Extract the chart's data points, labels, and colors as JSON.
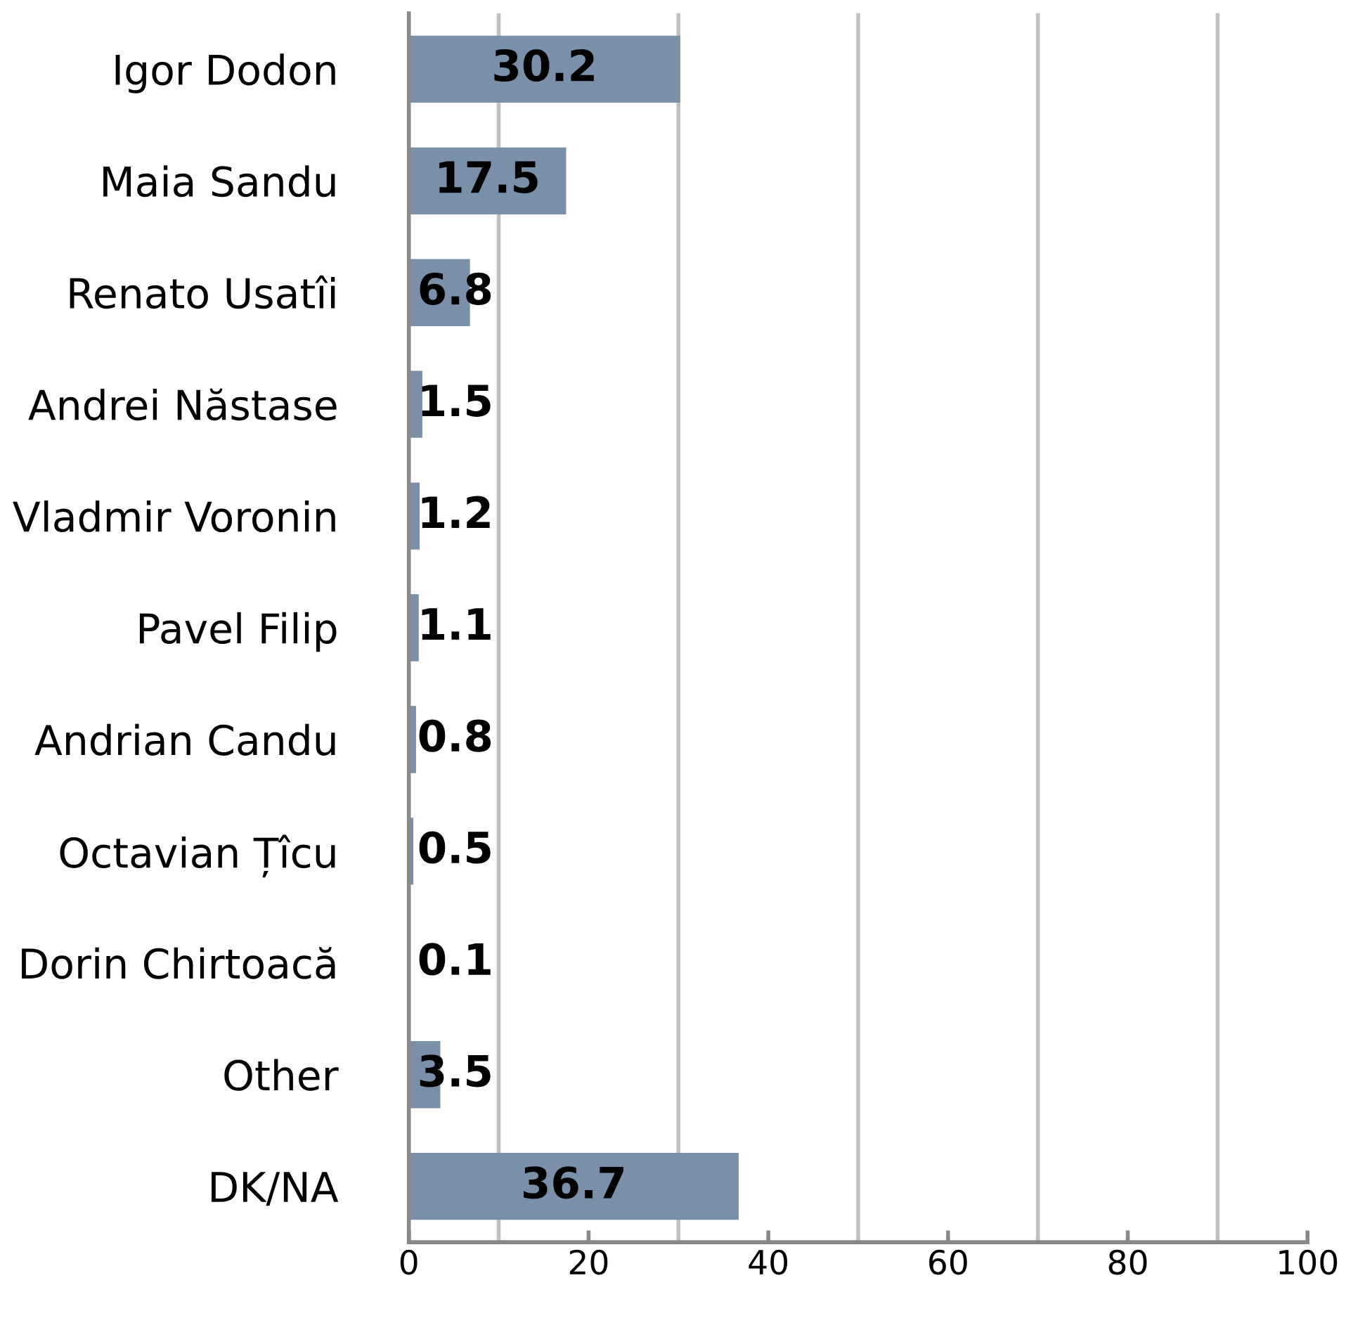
{
  "chart_data": {
    "type": "bar",
    "orientation": "horizontal",
    "categories": [
      "Igor Dodon",
      "Maia Sandu",
      "Renato Usatîi",
      "Andrei Năstase",
      "Vladmir Voronin",
      "Pavel Filip",
      "Andrian Candu",
      "Octavian Țîcu",
      "Dorin Chirtoacă",
      "Other",
      "DK/NA"
    ],
    "values": [
      30.2,
      17.5,
      6.8,
      1.5,
      1.2,
      1.1,
      0.8,
      0.5,
      0.1,
      3.5,
      36.7
    ],
    "color": "#7a90a8",
    "data_labels": true,
    "xlim": [
      0,
      100
    ],
    "xticks": [
      0,
      20,
      40,
      60,
      80,
      100
    ],
    "ref_lines": [
      {
        "axis": "x",
        "value": 10,
        "color": "#c0c0c0"
      },
      {
        "axis": "x",
        "value": 30,
        "color": "#c0c0c0"
      },
      {
        "axis": "x",
        "value": 50,
        "color": "#c0c0c0"
      },
      {
        "axis": "x",
        "value": 70,
        "color": "#c0c0c0"
      },
      {
        "axis": "x",
        "value": 90,
        "color": "#c0c0c0"
      }
    ],
    "grid": false,
    "legend": false
  }
}
